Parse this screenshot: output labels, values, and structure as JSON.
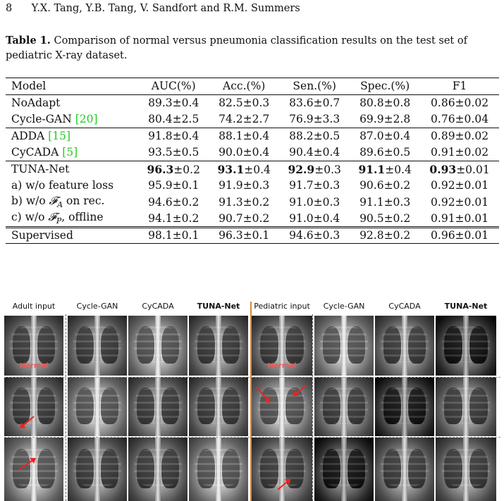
{
  "header": {
    "page_number": "8",
    "authors": "Y.X. Tang, Y.B. Tang, V. Sandfort and R.M. Summers"
  },
  "caption": {
    "label": "Table 1.",
    "text": "Comparison of normal versus pneumonia classification results on the test set of pediatric X-ray dataset."
  },
  "table": {
    "headers": [
      "Model",
      "AUC(%)",
      "Acc.(%)",
      "Sen.(%)",
      "Spec.(%)",
      "F1"
    ],
    "rows": [
      {
        "model": "NoAdapt",
        "cite": "",
        "auc": "89.3±0.4",
        "acc": "82.5±0.3",
        "sen": "83.6±0.7",
        "spec": "80.8±0.8",
        "f1": "0.86±0.02"
      },
      {
        "model": "Cycle-GAN ",
        "cite": "[20]",
        "auc": "80.4±2.5",
        "acc": "74.2±2.7",
        "sen": "76.9±3.3",
        "spec": "69.9±2.8",
        "f1": "0.76±0.04"
      },
      {
        "model": "ADDA ",
        "cite": "[15]",
        "auc": "91.8±0.4",
        "acc": "88.1±0.4",
        "sen": "88.2±0.5",
        "spec": "87.0±0.4",
        "f1": "0.89±0.02"
      },
      {
        "model": "CyCADA ",
        "cite": "[5]",
        "auc": "93.5±0.5",
        "acc": "90.0±0.4",
        "sen": "90.4±0.4",
        "spec": "89.6±0.5",
        "f1": "0.91±0.02"
      },
      {
        "model": "TUNA-Net",
        "auc_main": "96.3",
        "auc_pm": "±0.2",
        "acc_main": "93.1",
        "acc_pm": "±0.4",
        "sen_main": "92.9",
        "sen_pm": "±0.3",
        "spec_main": "91.1",
        "spec_pm": "±0.4",
        "f1_main": "0.93",
        "f1_pm": "±0.01"
      },
      {
        "model": "a) w/o feature loss",
        "auc": "95.9±0.1",
        "acc": "91.9±0.3",
        "sen": "91.7±0.3",
        "spec": "90.6±0.2",
        "f1": "0.92±0.01"
      },
      {
        "model_pre": "b) w/o ",
        "model_sym": "𝓕",
        "model_sub": "A",
        "model_post": " on rec.",
        "auc": "94.6±0.2",
        "acc": "91.3±0.2",
        "sen": "91.0±0.3",
        "spec": "91.1±0.3",
        "f1": "0.92±0.01"
      },
      {
        "model_pre": "c) w/o ",
        "model_sym": "𝓕",
        "model_sub": "P",
        "model_post": ", offline",
        "auc": "94.1±0.2",
        "acc": "90.7±0.2",
        "sen": "91.0±0.4",
        "spec": "90.5±0.2",
        "f1": "0.91±0.01"
      },
      {
        "model": "Supervised",
        "auc": "98.1±0.1",
        "acc": "96.3±0.1",
        "sen": "94.6±0.3",
        "spec": "92.8±0.2",
        "f1": "0.96±0.01"
      }
    ]
  },
  "figure": {
    "columns": [
      "Adult input",
      "Cycle-GAN",
      "CyCADA",
      "TUNA-Net",
      "Pediatric input",
      "Cycle-GAN",
      "CyCADA",
      "TUNA-Net"
    ],
    "normal_label": "Normal",
    "colors": {
      "arrow": "#e22222",
      "divider": "#d4883a",
      "normal_text": "#e55555"
    }
  }
}
